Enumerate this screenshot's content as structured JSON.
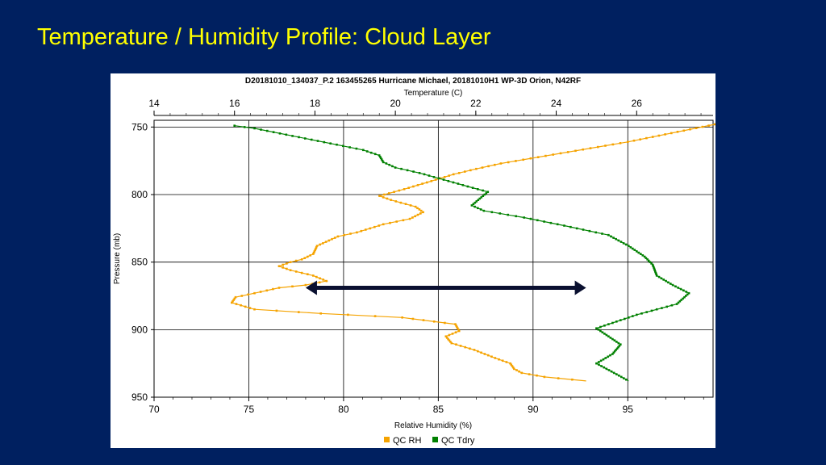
{
  "slide": {
    "title": "Temperature / Humidity Profile: Cloud Layer"
  },
  "chart_data": {
    "type": "line",
    "title": "D20181010_134037_P.2 163455265 Hurricane Michael, 20181010H1 WP-3D Orion, N42RF",
    "x_top_label": "Temperature (C)",
    "x_bottom_label": "Relative Humidity (%)",
    "ylabel": "Pressure (mb)",
    "y_ticks": [
      750,
      800,
      850,
      900,
      950
    ],
    "ylim": [
      745,
      950
    ],
    "y_inverted": true,
    "x_bottom_ticks": [
      70,
      75,
      80,
      85,
      90,
      95
    ],
    "x_bottom_lim": [
      70,
      99.5
    ],
    "x_top_ticks": [
      14,
      16,
      18,
      20,
      22,
      24,
      26
    ],
    "x_top_lim": [
      14,
      27.9
    ],
    "grid": true,
    "legend_position": "bottom-center",
    "colors": {
      "rh": "#F5A300",
      "tdry": "#008000",
      "arrow": "#0A1030"
    },
    "series": [
      {
        "name": "QC RH",
        "axis": "bottom",
        "points": [
          [
            99.6,
            748
          ],
          [
            95,
            761
          ],
          [
            88.3,
            777
          ],
          [
            87,
            781
          ],
          [
            85.8,
            785
          ],
          [
            84.4,
            791
          ],
          [
            83.2,
            796
          ],
          [
            82.4,
            799
          ],
          [
            81.9,
            801
          ],
          [
            82.5,
            804
          ],
          [
            83.8,
            809
          ],
          [
            84.2,
            813
          ],
          [
            83.5,
            818
          ],
          [
            82.1,
            822
          ],
          [
            80.7,
            828
          ],
          [
            79.7,
            831
          ],
          [
            78.6,
            838
          ],
          [
            78.4,
            844
          ],
          [
            77.8,
            848
          ],
          [
            77.2,
            850
          ],
          [
            76.6,
            853
          ],
          [
            77.2,
            856
          ],
          [
            78.4,
            860
          ],
          [
            79.1,
            864
          ],
          [
            78.0,
            867
          ],
          [
            76.6,
            869
          ],
          [
            75.3,
            873
          ],
          [
            74.3,
            876
          ],
          [
            74.1,
            880
          ],
          [
            75.3,
            885
          ],
          [
            78.8,
            888
          ],
          [
            83.1,
            891
          ],
          [
            85.9,
            896
          ],
          [
            86.1,
            901
          ],
          [
            85.4,
            905
          ],
          [
            85.7,
            910
          ],
          [
            86.9,
            915
          ],
          [
            88.0,
            921
          ],
          [
            88.8,
            925
          ],
          [
            89.0,
            929
          ],
          [
            89.4,
            932
          ],
          [
            90.6,
            935
          ],
          [
            92.8,
            938
          ]
        ]
      },
      {
        "name": "QC Tdry",
        "axis": "top",
        "points": [
          [
            16.0,
            749
          ],
          [
            16.5,
            751
          ],
          [
            18.7,
            764
          ],
          [
            19.2,
            767
          ],
          [
            19.6,
            771
          ],
          [
            19.7,
            776
          ],
          [
            20.0,
            780
          ],
          [
            20.6,
            784
          ],
          [
            21.2,
            789
          ],
          [
            21.8,
            794
          ],
          [
            22.3,
            798
          ],
          [
            22.1,
            803
          ],
          [
            21.9,
            808
          ],
          [
            22.2,
            812
          ],
          [
            23.2,
            817
          ],
          [
            24.2,
            823
          ],
          [
            25.3,
            830
          ],
          [
            25.8,
            838
          ],
          [
            26.2,
            846
          ],
          [
            26.4,
            852
          ],
          [
            26.5,
            860
          ],
          [
            26.9,
            867
          ],
          [
            27.3,
            873
          ],
          [
            27.0,
            881
          ],
          [
            26.0,
            889
          ],
          [
            25.0,
            899
          ],
          [
            25.3,
            905
          ],
          [
            25.6,
            911
          ],
          [
            25.4,
            918
          ],
          [
            25.0,
            925
          ],
          [
            25.5,
            933
          ],
          [
            25.8,
            938
          ]
        ]
      }
    ],
    "annotations": [
      {
        "type": "double-arrow",
        "from": [
          78.0,
          869
        ],
        "to": [
          92.8,
          869
        ]
      }
    ]
  }
}
